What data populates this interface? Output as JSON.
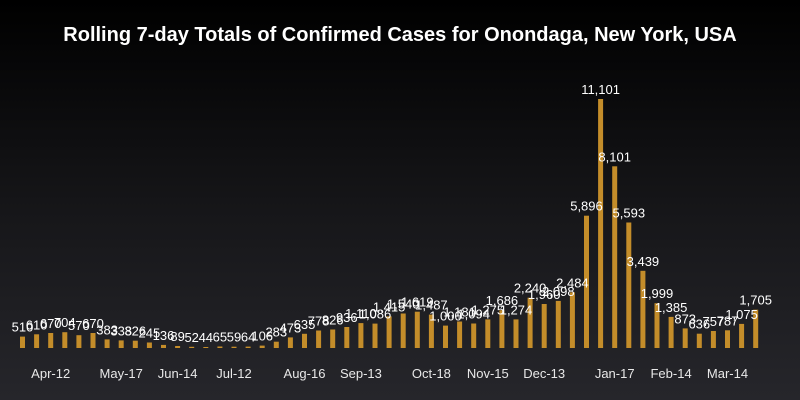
{
  "chart_data": {
    "type": "bar",
    "title": "Rolling 7-day Totals of Confirmed Cases for Onondaga, New York, USA",
    "xlabel": "",
    "ylabel": "",
    "ylim": [
      0,
      11500
    ],
    "grid": false,
    "legend": "none",
    "bar_color": "#c48d2a",
    "tick_labels": [
      "Apr-12",
      "May-17",
      "Jun-14",
      "Jul-12",
      "Aug-16",
      "Sep-13",
      "Oct-18",
      "Nov-15",
      "Dec-13",
      "Jan-17",
      "Feb-14",
      "Mar-14"
    ],
    "tick_positions": [
      2,
      7,
      11,
      15,
      20,
      24,
      29,
      33,
      37,
      42,
      46,
      50
    ],
    "values": [
      510,
      610,
      670,
      704,
      570,
      670,
      383,
      338,
      326,
      245,
      136,
      89,
      52,
      44,
      65,
      59,
      64,
      106,
      283,
      473,
      635,
      778,
      826,
      936,
      1110,
      1086,
      1415,
      1540,
      1619,
      1487,
      1000,
      1181,
      1094,
      1275,
      1686,
      1274,
      2240,
      1960,
      2098,
      2484,
      5896,
      11101,
      8101,
      5593,
      3439,
      1999,
      1385,
      873,
      636,
      757,
      787,
      1075,
      1705
    ],
    "data_labels": [
      "510",
      "610",
      "670",
      "704",
      "570",
      "670",
      "383",
      "338",
      "326",
      "245",
      "136",
      "89",
      "52",
      "44",
      "65",
      "59",
      "64",
      "106",
      "283",
      "473",
      "635",
      "778",
      "826",
      "936",
      "1,110",
      "1,086",
      "1,415",
      "1,540",
      "1,619",
      "1,487",
      "1,000",
      "1,181",
      "1,094",
      "1,275",
      "1,686",
      "1,274",
      "2,240",
      "1,960",
      "2,098",
      "2,484",
      "5,896",
      "11,101",
      "8,101",
      "5,593",
      "3,439",
      "1,999",
      "1,385",
      "873",
      "636",
      "757",
      "787",
      "1,075",
      "1,705"
    ]
  }
}
